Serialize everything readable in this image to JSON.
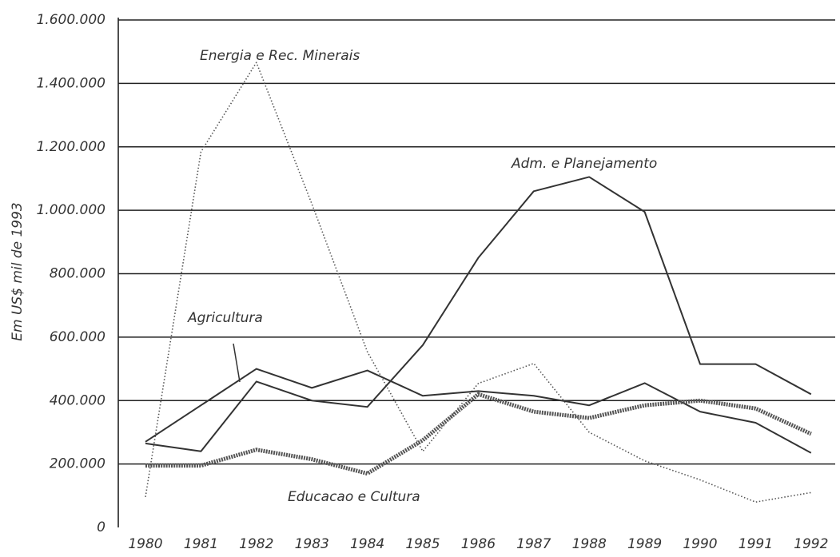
{
  "chart_data": {
    "type": "line",
    "y_axis_label": "Em US$ mil de 1993",
    "categories": [
      "1980",
      "1981",
      "1982",
      "1983",
      "1984",
      "1985",
      "1986",
      "1987",
      "1988",
      "1989",
      "1990",
      "1991",
      "1992"
    ],
    "ylim": [
      0,
      1600000
    ],
    "yticks": [
      {
        "value": 0,
        "label": "0"
      },
      {
        "value": 200000,
        "label": "200.000"
      },
      {
        "value": 400000,
        "label": "400.000"
      },
      {
        "value": 600000,
        "label": "600.000"
      },
      {
        "value": 800000,
        "label": "800.000"
      },
      {
        "value": 1000000,
        "label": "1.000.000"
      },
      {
        "value": 1200000,
        "label": "1.200.000"
      },
      {
        "value": 1400000,
        "label": "1.400.000"
      },
      {
        "value": 1600000,
        "label": "1.600.000"
      }
    ],
    "grid": true,
    "series": [
      {
        "name": "Energia e Rec. Minerais",
        "color": "#555555",
        "style": "dotted",
        "values": [
          96000,
          1184000,
          1466000,
          1020000,
          554000,
          240000,
          454000,
          517000,
          300000,
          210000,
          150000,
          80000,
          110000
        ]
      },
      {
        "name": "Adm. e Planejamento",
        "color": "#333333",
        "style": "solid",
        "values": [
          265000,
          240000,
          460000,
          400000,
          380000,
          575000,
          850000,
          1060000,
          1105000,
          995000,
          515000,
          515000,
          420000
        ]
      },
      {
        "name": "Agricultura",
        "color": "#333333",
        "style": "solid",
        "values": [
          270000,
          385000,
          500000,
          440000,
          495000,
          415000,
          430000,
          415000,
          385000,
          455000,
          365000,
          330000,
          235000
        ]
      },
      {
        "name": "Educacao e Cultura",
        "color": "#555555",
        "style": "thick",
        "values": [
          195000,
          195000,
          245000,
          215000,
          170000,
          275000,
          420000,
          365000,
          345000,
          385000,
          400000,
          375000,
          295000
        ]
      }
    ]
  }
}
